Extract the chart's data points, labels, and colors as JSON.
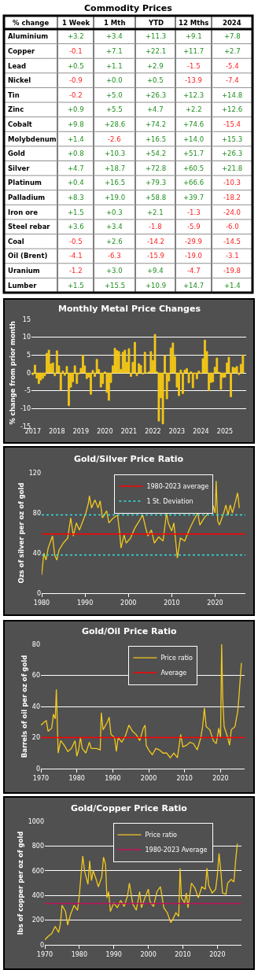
{
  "chart_data": [
    {
      "type": "heatmap",
      "title": "Commodity Prices",
      "ylabel": "% change",
      "categories": [
        "1 Week",
        "1 Mth",
        "YTD",
        "12 Mths",
        "2024"
      ],
      "y_categories": [
        "Aluminium",
        "Copper",
        "Lead",
        "Nickel",
        "Tin",
        "Zinc",
        "Cobalt",
        "Molybdenum",
        "Gold",
        "Silver",
        "Platinum",
        "Palladium",
        "Iron ore",
        "Steel rebar",
        "Coal",
        "Oil (Brent)",
        "Uranium",
        "Lumber"
      ],
      "cells": [
        [
          3.2,
          3.4,
          11.3,
          9.1,
          7.8
        ],
        [
          -0.1,
          7.1,
          22.1,
          11.7,
          2.7
        ],
        [
          0.5,
          1.1,
          2.9,
          -1.5,
          -5.4
        ],
        [
          -0.9,
          0.0,
          0.5,
          -13.9,
          -7.4
        ],
        [
          -0.2,
          5.0,
          26.3,
          12.3,
          14.8
        ],
        [
          0.9,
          5.5,
          4.7,
          2.2,
          12.6
        ],
        [
          9.8,
          28.6,
          74.2,
          74.6,
          -15.4
        ],
        [
          1.4,
          -2.6,
          16.5,
          14.0,
          15.3
        ],
        [
          0.8,
          10.3,
          54.2,
          51.7,
          26.3
        ],
        [
          4.7,
          18.7,
          72.8,
          60.5,
          21.8
        ],
        [
          0.4,
          16.5,
          79.3,
          66.6,
          -10.3
        ],
        [
          8.3,
          19.0,
          58.8,
          39.7,
          -18.2
        ],
        [
          1.5,
          0.3,
          2.1,
          -1.3,
          -24.0
        ],
        [
          3.6,
          3.4,
          -1.8,
          -5.9,
          -6.0
        ],
        [
          -0.5,
          2.6,
          -14.2,
          -29.9,
          -14.5
        ],
        [
          -4.1,
          -6.3,
          -15.9,
          -19.0,
          -3.1
        ],
        [
          -1.2,
          3.0,
          9.4,
          -4.7,
          -19.8
        ],
        [
          1.5,
          15.5,
          10.9,
          14.7,
          1.4
        ]
      ],
      "cell_labels": [
        [
          "+3.2",
          "+3.4",
          "+11.3",
          "+9.1",
          "+7.8"
        ],
        [
          "-0.1",
          "+7.1",
          "+22.1",
          "+11.7",
          "+2.7"
        ],
        [
          "+0.5",
          "+1.1",
          "+2.9",
          "-1.5",
          "-5.4"
        ],
        [
          "-0.9",
          "+0.0",
          "+0.5",
          "-13.9",
          "-7.4"
        ],
        [
          "-0.2",
          "+5.0",
          "+26.3",
          "+12.3",
          "+14.8"
        ],
        [
          "+0.9",
          "+5.5",
          "+4.7",
          "+2.2",
          "+12.6"
        ],
        [
          "+9.8",
          "+28.6",
          "+74.2",
          "+74.6",
          "-15.4"
        ],
        [
          "+1.4",
          "-2.6",
          "+16.5",
          "+14.0",
          "+15.3"
        ],
        [
          "+0.8",
          "+10.3",
          "+54.2",
          "+51.7",
          "+26.3"
        ],
        [
          "+4.7",
          "+18.7",
          "+72.8",
          "+60.5",
          "+21.8"
        ],
        [
          "+0.4",
          "+16.5",
          "+79.3",
          "+66.6",
          "-10.3"
        ],
        [
          "+8.3",
          "+19.0",
          "+58.8",
          "+39.7",
          "-18.2"
        ],
        [
          "+1.5",
          "+0.3",
          "+2.1",
          "-1.3",
          "-24.0"
        ],
        [
          "+3.6",
          "+3.4",
          "-1.8",
          "-5.9",
          "-6.0"
        ],
        [
          "-0.5",
          "+2.6",
          "-14.2",
          "-29.9",
          "-14.5"
        ],
        [
          "-4.1",
          "-6.3",
          "-15.9",
          "-19.0",
          "-3.1"
        ],
        [
          "-1.2",
          "+3.0",
          "+9.4",
          "-4.7",
          "-19.8"
        ],
        [
          "+1.5",
          "+15.5",
          "+10.9",
          "+14.7",
          "+1.4"
        ]
      ]
    },
    {
      "type": "bar",
      "title": "Monthly Metal Price Changes",
      "ylabel": "% change from prior month",
      "color": "#f5c816",
      "grid": "y",
      "x": [
        "2017-01",
        "2017-02",
        "2017-03",
        "2017-04",
        "2017-05",
        "2017-06",
        "2017-07",
        "2017-08",
        "2017-09",
        "2017-10",
        "2017-11",
        "2017-12",
        "2018-01",
        "2018-02",
        "2018-03",
        "2018-04",
        "2018-05",
        "2018-06",
        "2018-07",
        "2018-08",
        "2018-09",
        "2018-10",
        "2018-11",
        "2018-12",
        "2019-01",
        "2019-02",
        "2019-03",
        "2019-04",
        "2019-05",
        "2019-06",
        "2019-07",
        "2019-08",
        "2019-09",
        "2019-10",
        "2019-11",
        "2019-12",
        "2020-01",
        "2020-02",
        "2020-03",
        "2020-04",
        "2020-05",
        "2020-06",
        "2020-07",
        "2020-08",
        "2020-09",
        "2020-10",
        "2020-11",
        "2020-12",
        "2021-01",
        "2021-02",
        "2021-03",
        "2021-04",
        "2021-05",
        "2021-06",
        "2021-07",
        "2021-08",
        "2021-09",
        "2021-10",
        "2021-11",
        "2021-12",
        "2022-01",
        "2022-02",
        "2022-03",
        "2022-04",
        "2022-05",
        "2022-06",
        "2022-07",
        "2022-08",
        "2022-09",
        "2022-10",
        "2022-11",
        "2022-12",
        "2023-01",
        "2023-02",
        "2023-03",
        "2023-04",
        "2023-05",
        "2023-06",
        "2023-07",
        "2023-08",
        "2023-09",
        "2023-10",
        "2023-11",
        "2023-12",
        "2024-01",
        "2024-02",
        "2024-03",
        "2024-04",
        "2024-05",
        "2024-06",
        "2024-07",
        "2024-08",
        "2024-09",
        "2024-10",
        "2024-11",
        "2024-12",
        "2025-01",
        "2025-02",
        "2025-03",
        "2025-04",
        "2025-05",
        "2025-06",
        "2025-07",
        "2025-08",
        "2025-09",
        "2025-10"
      ],
      "values": [
        -0.5,
        2.2,
        -1.5,
        -3.0,
        -2.0,
        -1.5,
        -0.8,
        5.5,
        6.4,
        2.5,
        2.8,
        -0.8,
        6.2,
        2.0,
        -4.8,
        0.5,
        -0.7,
        1.8,
        -9.2,
        -4.0,
        -2.5,
        2.0,
        -3.0,
        -0.3,
        1.3,
        5.0,
        2.0,
        -1.6,
        -1.2,
        -6.0,
        0.7,
        -1.0,
        3.8,
        1.0,
        -4.0,
        -3.0,
        0.3,
        -5.5,
        -7.7,
        -2.7,
        2.0,
        6.9,
        6.3,
        6.0,
        1.0,
        5.8,
        6.4,
        3.0,
        6.8,
        -1.0,
        3.0,
        8.6,
        -0.8,
        2.6,
        2.1,
        -0.3,
        5.8,
        0.0,
        0.3,
        6.0,
        3.5,
        10.8,
        0.3,
        -13.5,
        -7.0,
        -14.3,
        4.9,
        -7.3,
        -2.3,
        7.0,
        8.4,
        4.6,
        -4.0,
        -6.4,
        0.8,
        -5.8,
        0.8,
        1.2,
        -2.8,
        0.3,
        -4.2,
        -0.2,
        -1.7,
        0.5,
        -0.2,
        4.0,
        9.2,
        6.0,
        -5.0,
        -2.7,
        -2.5,
        1.6,
        4.2,
        0.2,
        -4.6,
        -1.3,
        -1.2,
        2.8,
        4.4,
        -6.7,
        1.6,
        1.4,
        1.8,
        -0.5,
        2.4,
        5.0
      ],
      "xlim": [
        "2016-12-10",
        "2025-11-20"
      ],
      "xticks": [
        {
          "value": "2017-01",
          "label": "2017"
        },
        {
          "value": "2018-01",
          "label": "2018"
        },
        {
          "value": "2019-01",
          "label": "2019"
        },
        {
          "value": "2020-01",
          "label": "2020"
        },
        {
          "value": "2021-01",
          "label": "2021"
        },
        {
          "value": "2022-01",
          "label": "2022"
        },
        {
          "value": "2023-01",
          "label": "2023"
        },
        {
          "value": "2024-01",
          "label": "2024"
        },
        {
          "value": "2025-01",
          "label": "2025"
        }
      ],
      "ylim": [
        -15,
        15
      ],
      "yticks": [
        -15,
        -10,
        -5,
        0,
        5,
        10,
        15
      ]
    },
    {
      "type": "line",
      "title": "Gold/Silver Price Ratio",
      "ylabel": "Ozs of silver per oz of gold",
      "legend": "top",
      "xlim": [
        1980,
        2027
      ],
      "xticks": [
        1980,
        1990,
        2000,
        2010,
        2020
      ],
      "ylim": [
        0,
        120
      ],
      "yticks": [
        0,
        40,
        80,
        120
      ],
      "series": [
        {
          "color": "#f2c81f",
          "x": [
            1980.0,
            1980.5,
            1981,
            1981.5,
            1982.5,
            1983,
            1983.5,
            1984,
            1985,
            1986,
            1986.7,
            1987.3,
            1988,
            1988.7,
            1989.5,
            1990.2,
            1990.8,
            1991,
            1991.5,
            1992.3,
            1993,
            1993.5,
            1994,
            1995,
            1995.5,
            1996.5,
            1997.5,
            1998,
            1998.3,
            1999,
            1999.5,
            2000.5,
            2001.5,
            2002.5,
            2003.3,
            2004,
            2004.5,
            2005.3,
            2006,
            2007,
            2008,
            2008.8,
            2009.2,
            2010,
            2010.5,
            2011.3,
            2012,
            2013,
            2014,
            2015,
            2016,
            2016.5,
            2017.5,
            2018.5,
            2019.5,
            2020,
            2020.25,
            2020.6,
            2021,
            2022,
            2022.5,
            2023,
            2023.5,
            2024,
            2024.5,
            2025.2,
            2025.6
          ],
          "values": [
            18,
            40,
            33,
            45,
            57,
            38,
            33,
            43,
            50,
            55,
            75,
            57,
            70,
            63,
            72,
            80,
            90,
            97,
            85,
            93,
            85,
            92,
            75,
            82,
            70,
            75,
            78,
            60,
            45,
            58,
            50,
            55,
            65,
            72,
            78,
            65,
            57,
            63,
            50,
            56,
            52,
            80,
            70,
            62,
            70,
            35,
            55,
            52,
            63,
            72,
            80,
            68,
            75,
            80,
            88,
            80,
            112,
            72,
            68,
            80,
            88,
            78,
            88,
            80,
            88,
            100,
            85
          ]
        }
      ],
      "ref_lines": [
        {
          "axis": "y",
          "value": 59,
          "label": "1980-2023 average",
          "color": "#ff0000",
          "line_style": "solid"
        },
        {
          "axis": "y",
          "value": 78,
          "label": "1 St. Deviation",
          "color": "#33e0e0",
          "line_style": "dotted"
        },
        {
          "axis": "y",
          "value": 38,
          "color": "#33e0e0",
          "line_style": "dotted"
        }
      ]
    },
    {
      "type": "line",
      "title": "Gold/Oil Price Ratio",
      "ylabel": "Barrels of oil per oz of gold",
      "legend": "top",
      "grid": "y",
      "xlim": [
        1970,
        2026.7
      ],
      "xticks": [
        1970,
        1980,
        1990,
        2000,
        2010,
        2020
      ],
      "ylim": [
        0,
        80
      ],
      "yticks": [
        0,
        20,
        40,
        60,
        80
      ],
      "series": [
        {
          "name": "Price ratio",
          "color": "#f2c81f",
          "x": [
            1970,
            1971,
            1971.5,
            1972,
            1973,
            1973.5,
            1974,
            1974.3,
            1974.6,
            1974.8,
            1975.5,
            1976.5,
            1977.5,
            1978.5,
            1979.5,
            1980,
            1980.5,
            1981,
            1981.5,
            1982.5,
            1983.5,
            1984,
            1985.5,
            1986.5,
            1986.8,
            1987.3,
            1988.5,
            1989,
            1989.5,
            1990.5,
            1991,
            1991.5,
            1992.5,
            1993.5,
            1994.5,
            1995.5,
            1996.5,
            1997.5,
            1998.5,
            1999,
            1999.3,
            2000,
            2001,
            2002,
            2003,
            2004,
            2005,
            2006,
            2007,
            2008,
            2008.9,
            2009.5,
            2010.5,
            2011.5,
            2012.5,
            2013.5,
            2014.5,
            2015,
            2015.5,
            2016,
            2017,
            2018,
            2018.8,
            2019.5,
            2020.0,
            2020.3,
            2020.6,
            2021,
            2022,
            2022.5,
            2023,
            2024,
            2024.8,
            2025.3,
            2025.8
          ],
          "values": [
            28,
            30,
            31,
            24,
            26,
            35,
            32,
            51,
            27,
            10,
            18,
            15,
            11,
            13,
            18,
            8,
            12,
            20,
            13,
            10,
            17,
            13,
            13,
            12,
            36,
            25,
            30,
            33,
            22,
            20,
            11,
            20,
            17,
            21,
            28,
            24,
            22,
            18,
            26,
            28,
            15,
            12,
            9,
            13,
            12,
            10,
            10,
            7,
            10,
            7,
            22,
            14,
            15,
            17,
            16,
            12,
            20,
            27,
            39,
            27,
            25,
            18,
            16,
            26,
            20,
            80,
            45,
            27,
            20,
            15,
            25,
            27,
            37,
            52,
            68
          ]
        }
      ],
      "ref_lines": [
        {
          "axis": "y",
          "value": 20,
          "label": "Average",
          "color": "#ff0000",
          "line_style": "solid"
        }
      ]
    },
    {
      "type": "line",
      "title": "Gold/Copper Price Ratio",
      "ylabel": "lbs of copper per oz of gold",
      "legend": "top",
      "grid": "y",
      "xlim": [
        1970,
        2027
      ],
      "xticks": [
        1970,
        1980,
        1990,
        2000,
        2010,
        2020
      ],
      "ylim": [
        0,
        1000
      ],
      "yticks": [
        0,
        200,
        400,
        600,
        800,
        1000
      ],
      "series": [
        {
          "name": "Price ratio",
          "color": "#f2c81f",
          "x": [
            1970,
            1971,
            1972,
            1973,
            1974,
            1974.5,
            1975,
            1976,
            1976.6,
            1977.5,
            1978.5,
            1979.5,
            1980,
            1980.5,
            1981,
            1981.5,
            1982.5,
            1983,
            1983.5,
            1984,
            1985,
            1985.5,
            1986.5,
            1987,
            1987.6,
            1988,
            1988.5,
            1989,
            1990,
            1991,
            1992,
            1993,
            1994,
            1994.5,
            1995.5,
            1996.5,
            1997.5,
            1998,
            1999,
            2000,
            2000.5,
            2001.5,
            2002.5,
            2003.5,
            2004.5,
            2005.5,
            2006.5,
            2007,
            2008,
            2008.8,
            2009.2,
            2009.6,
            2010.5,
            2011,
            2011.5,
            2012.5,
            2013.5,
            2014.5,
            2015.5,
            2016.5,
            2017,
            2017.5,
            2018.5,
            2019.5,
            2020,
            2020.5,
            2021,
            2021.5,
            2022.5,
            2023,
            2024,
            2024.8,
            2025.3,
            2025.8
          ],
          "values": [
            40,
            70,
            90,
            150,
            100,
            170,
            320,
            270,
            160,
            250,
            320,
            280,
            400,
            570,
            720,
            600,
            490,
            680,
            520,
            600,
            520,
            470,
            550,
            710,
            650,
            380,
            430,
            270,
            340,
            300,
            360,
            310,
            400,
            500,
            330,
            280,
            430,
            300,
            380,
            450,
            350,
            310,
            430,
            470,
            300,
            260,
            180,
            200,
            260,
            230,
            620,
            380,
            340,
            420,
            300,
            500,
            460,
            380,
            470,
            450,
            620,
            480,
            420,
            450,
            560,
            740,
            600,
            420,
            410,
            500,
            530,
            510,
            680,
            820
          ]
        }
      ],
      "ref_lines": [
        {
          "axis": "y",
          "value": 335,
          "label": "1980-2023 Average",
          "color": "#c0105a",
          "line_style": "solid"
        }
      ]
    }
  ]
}
